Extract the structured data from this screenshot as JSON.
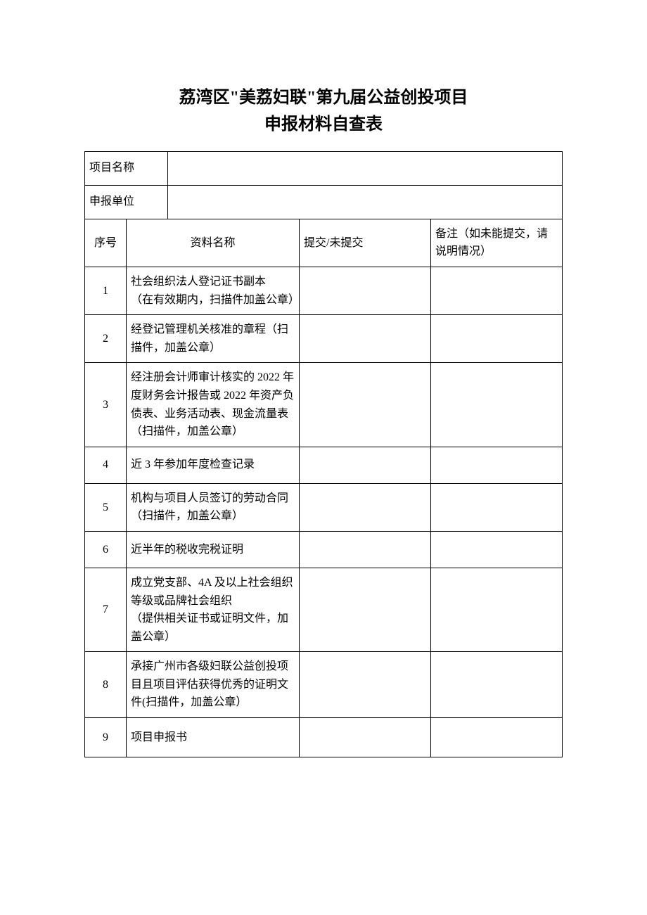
{
  "title_line1": "荔湾区\"美荔妇联\"第九届公益创投项目",
  "title_line2": "申报材料自查表",
  "labels": {
    "project_name": "项目名称",
    "applicant_unit": "申报单位",
    "seq": "序号",
    "material_name": "资料名称",
    "submit_status": "提交/未提交",
    "remark": "备注（如未能提交，请说明情况）"
  },
  "rows": [
    {
      "seq": "1",
      "name": "社会组织法人登记证书副本\n（在有效期内，扫描件加盖公章）"
    },
    {
      "seq": "2",
      "name": "经登记管理机关核准的章程（扫描件，加盖公章）"
    },
    {
      "seq": "3",
      "name": "经注册会计师审计核实的 2022 年度财务会计报告或 2022 年资产负债表、业务活动表、现金流量表\n（扫描件，加盖公章）"
    },
    {
      "seq": "4",
      "name": "近 3 年参加年度检查记录"
    },
    {
      "seq": "5",
      "name": "机构与项目人员签订的劳动合同（扫描件，加盖公章）"
    },
    {
      "seq": "6",
      "name": "近半年的税收完税证明"
    },
    {
      "seq": "7",
      "name": "成立党支部、4A 及以上社会组织等级或品牌社会组织\n（提供相关证书或证明文件，加盖公章）"
    },
    {
      "seq": "8",
      "name": "承接广州市各级妇联公益创投项目且项目评估获得优秀的证明文件(扫描件，加盖公章）"
    },
    {
      "seq": "9",
      "name": "项目申报书"
    }
  ]
}
